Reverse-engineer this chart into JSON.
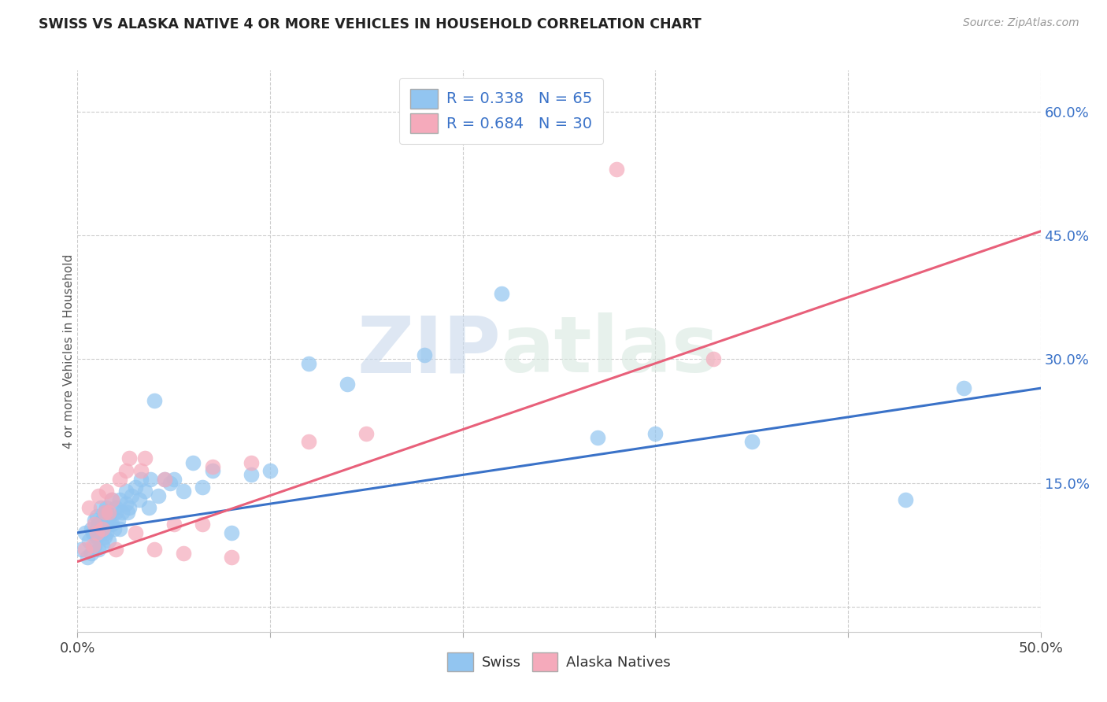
{
  "title": "SWISS VS ALASKA NATIVE 4 OR MORE VEHICLES IN HOUSEHOLD CORRELATION CHART",
  "source": "Source: ZipAtlas.com",
  "ylabel": "4 or more Vehicles in Household",
  "xlim": [
    0.0,
    0.5
  ],
  "ylim": [
    -0.03,
    0.65
  ],
  "xticks": [
    0.0,
    0.1,
    0.2,
    0.3,
    0.4,
    0.5
  ],
  "xticklabels": [
    "0.0%",
    "",
    "",
    "",
    "",
    "50.0%"
  ],
  "ytick_positions": [
    0.0,
    0.15,
    0.3,
    0.45,
    0.6
  ],
  "ytick_labels_right": [
    "",
    "15.0%",
    "30.0%",
    "45.0%",
    "60.0%"
  ],
  "watermark_zip": "ZIP",
  "watermark_atlas": "atlas",
  "swiss_color": "#92C5F0",
  "alaska_color": "#F5AABB",
  "swiss_line_color": "#3A72C8",
  "alaska_line_color": "#E8607A",
  "swiss_R": "0.338",
  "swiss_N": "65",
  "alaska_R": "0.684",
  "alaska_N": "30",
  "swiss_scatter_x": [
    0.002,
    0.004,
    0.005,
    0.006,
    0.007,
    0.007,
    0.008,
    0.009,
    0.009,
    0.01,
    0.01,
    0.011,
    0.011,
    0.012,
    0.012,
    0.013,
    0.013,
    0.014,
    0.014,
    0.015,
    0.015,
    0.016,
    0.016,
    0.017,
    0.018,
    0.018,
    0.019,
    0.02,
    0.02,
    0.021,
    0.022,
    0.022,
    0.023,
    0.025,
    0.025,
    0.026,
    0.027,
    0.028,
    0.03,
    0.032,
    0.033,
    0.035,
    0.037,
    0.038,
    0.04,
    0.042,
    0.045,
    0.048,
    0.05,
    0.055,
    0.06,
    0.065,
    0.07,
    0.08,
    0.09,
    0.1,
    0.12,
    0.14,
    0.18,
    0.22,
    0.27,
    0.3,
    0.35,
    0.43,
    0.46
  ],
  "swiss_scatter_y": [
    0.07,
    0.09,
    0.06,
    0.08,
    0.095,
    0.065,
    0.09,
    0.075,
    0.105,
    0.085,
    0.11,
    0.07,
    0.1,
    0.09,
    0.12,
    0.075,
    0.105,
    0.085,
    0.115,
    0.09,
    0.12,
    0.08,
    0.11,
    0.1,
    0.13,
    0.1,
    0.095,
    0.12,
    0.115,
    0.105,
    0.13,
    0.095,
    0.115,
    0.125,
    0.14,
    0.115,
    0.12,
    0.135,
    0.145,
    0.13,
    0.155,
    0.14,
    0.12,
    0.155,
    0.25,
    0.135,
    0.155,
    0.15,
    0.155,
    0.14,
    0.175,
    0.145,
    0.165,
    0.09,
    0.16,
    0.165,
    0.295,
    0.27,
    0.305,
    0.38,
    0.205,
    0.21,
    0.2,
    0.13,
    0.265
  ],
  "alaska_scatter_x": [
    0.004,
    0.006,
    0.008,
    0.009,
    0.01,
    0.011,
    0.013,
    0.014,
    0.015,
    0.016,
    0.018,
    0.02,
    0.022,
    0.025,
    0.027,
    0.03,
    0.033,
    0.035,
    0.04,
    0.045,
    0.05,
    0.055,
    0.065,
    0.07,
    0.08,
    0.09,
    0.12,
    0.15,
    0.28,
    0.33
  ],
  "alaska_scatter_y": [
    0.07,
    0.12,
    0.075,
    0.1,
    0.09,
    0.135,
    0.095,
    0.115,
    0.14,
    0.115,
    0.13,
    0.07,
    0.155,
    0.165,
    0.18,
    0.09,
    0.165,
    0.18,
    0.07,
    0.155,
    0.1,
    0.065,
    0.1,
    0.17,
    0.06,
    0.175,
    0.2,
    0.21,
    0.53,
    0.3
  ],
  "swiss_trend_x": [
    0.0,
    0.5
  ],
  "swiss_trend_y": [
    0.09,
    0.265
  ],
  "alaska_trend_x": [
    0.0,
    0.5
  ],
  "alaska_trend_y": [
    0.055,
    0.455
  ],
  "background_color": "#ffffff",
  "grid_color": "#cccccc",
  "title_color": "#222222",
  "legend_label_swiss": "Swiss",
  "legend_label_alaska": "Alaska Natives"
}
